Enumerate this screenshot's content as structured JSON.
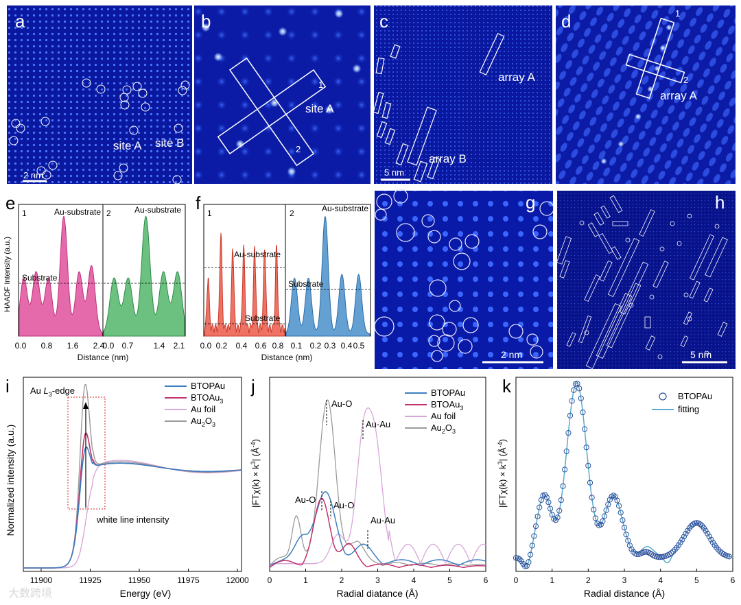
{
  "panels": {
    "a": {
      "label": "a",
      "site_a": "site A",
      "site_b": "site B",
      "scale": "2 nm"
    },
    "b": {
      "label": "b",
      "site_a": "site A",
      "line1": "1",
      "line2": "2"
    },
    "c": {
      "label": "c",
      "array_a": "array A",
      "array_b": "array B",
      "scale": "5 nm"
    },
    "d": {
      "label": "d",
      "array_a": "array A",
      "line1": "1",
      "line2": "2"
    },
    "g": {
      "label": "g",
      "scale": "2 nm"
    },
    "h": {
      "label": "h",
      "scale": "5 nm"
    }
  },
  "colors": {
    "pink": "#e0509c",
    "green": "#52b56a",
    "red": "#ec5b4a",
    "blue": "#4a8fca",
    "btopau": "#3a7fc1",
    "btoau3": "#c2306d",
    "aufoil": "#d8a6d8",
    "au2o3": "#9a9a9a",
    "fit": "#5aa9cf",
    "hrstem_bg": "#0a1aa8"
  },
  "chart_data": [
    {
      "id": "e",
      "type": "line",
      "label": "e",
      "ylabel": "HAADF Intensity (a.u.)",
      "xlabel": "Distance (nm)",
      "sub_panels": [
        {
          "label": "1",
          "xticks": [
            "0.0",
            "0.8",
            "1.6",
            "2.4"
          ],
          "peak_label": "Au-substrate",
          "line_label": "Substrate",
          "series": {
            "name": "profile 1",
            "x": [
              0.15,
              0.55,
              0.95,
              1.45,
              1.95,
              2.35
            ],
            "peaks": [
              0.45,
              0.5,
              0.45,
              0.95,
              0.5,
              0.55
            ]
          }
        },
        {
          "label": "2",
          "xticks": [
            "0.0",
            "0.7",
            "1.4",
            "2.1"
          ],
          "peak_label": "Au-substrate",
          "series": {
            "name": "profile 2",
            "x": [
              0.3,
              0.7,
              1.2,
              1.7,
              2.1
            ],
            "peaks": [
              0.45,
              0.45,
              0.95,
              0.5,
              0.5
            ]
          }
        }
      ]
    },
    {
      "id": "f",
      "type": "line",
      "label": "f",
      "xlabel": "Distance (nm)",
      "sub_panels": [
        {
          "label": "1",
          "xticks": [
            "0.0",
            "0.2",
            "0.4",
            "0.6",
            "0.8"
          ],
          "annotation_top": "Au-substrate",
          "annotation_bottom": "Substrate",
          "series": {
            "name": "profile 1",
            "x": [
              0.04,
              0.18,
              0.31,
              0.43,
              0.55,
              0.66,
              0.79
            ],
            "peaks": [
              0.42,
              0.78,
              0.66,
              0.66,
              0.66,
              0.66,
              0.66
            ]
          }
        },
        {
          "label": "2",
          "xticks": [
            "0.1",
            "0.2",
            "0.3",
            "0.4",
            "0.5"
          ],
          "peak_label": "Au-substrate",
          "line_label": "Substrate",
          "series": {
            "name": "profile 2",
            "x": [
              0.06,
              0.16,
              0.28,
              0.4,
              0.52
            ],
            "peaks": [
              0.45,
              0.45,
              0.95,
              0.48,
              0.48
            ]
          }
        }
      ]
    },
    {
      "id": "i",
      "type": "line",
      "label": "i",
      "title": "Au L3-edge",
      "title_main": "Au ",
      "title_italic": "L",
      "title_sub": "3",
      "title_end": "-edge",
      "xlabel": "Energy (eV)",
      "ylabel": "Normalized intensity (a.u.)",
      "xlim": [
        11890,
        12000
      ],
      "xticks": [
        "11900",
        "11925",
        "11950",
        "11975",
        "12000"
      ],
      "annotation": "white line intensity",
      "series": [
        {
          "name": "BTOPAu",
          "key": "btopau"
        },
        {
          "name": "BTOAu3",
          "key": "btoau3"
        },
        {
          "name": "Au foil",
          "key": "aufoil"
        },
        {
          "name": "Au2O3",
          "key": "au2o3"
        }
      ]
    },
    {
      "id": "j",
      "type": "line",
      "label": "j",
      "xlabel": "Radial diatance (Å)",
      "ylabel": "|FTχ(k) × k3| (Å-4)",
      "ylabel_parts": {
        "a": "|FTχ(k) × k",
        "b": "3",
        "c": "| (Å",
        "d": "-4",
        "e": ")"
      },
      "xlim": [
        0,
        6
      ],
      "xticks": [
        "0",
        "1",
        "2",
        "3",
        "4",
        "5",
        "6"
      ],
      "peaks": {
        "au_o_top": "Au-O",
        "au_au_top": "Au-Au",
        "au_o_left": "Au-O",
        "au_o_right": "Au-O",
        "au_au_bottom": "Au-Au"
      },
      "series": [
        {
          "name": "BTOPAu",
          "key": "btopau"
        },
        {
          "name": "BTOAu3",
          "key": "btoau3"
        },
        {
          "name": "Au foil",
          "key": "aufoil"
        },
        {
          "name": "Au2O3",
          "key": "au2o3"
        }
      ]
    },
    {
      "id": "k",
      "type": "line",
      "label": "k",
      "xlabel": "Radial distance (Å)",
      "ylabel": "|FTχ(k) × k3| (Å-4)",
      "xlim": [
        0,
        6
      ],
      "xticks": [
        "0",
        "1",
        "2",
        "3",
        "4",
        "5",
        "6"
      ],
      "series": [
        {
          "name": "BTOPAu",
          "style": "circles"
        },
        {
          "name": "fitting",
          "style": "line"
        }
      ]
    }
  ],
  "legend": {
    "i": [
      "BTOPAu",
      "BTOAu3",
      "Au foil",
      "Au2O3"
    ],
    "j": [
      "BTOPAu",
      "BTOAu3",
      "Au foil",
      "Au2O3"
    ],
    "k": [
      "BTOPAu",
      "fitting"
    ]
  },
  "legend_parts": {
    "btoau3_base": "BTOAu",
    "btoau3_sub": "3",
    "au2o3_a": "Au",
    "au2o3_b": "2",
    "au2o3_c": "O",
    "au2o3_d": "3"
  },
  "watermark": "大数跨境"
}
